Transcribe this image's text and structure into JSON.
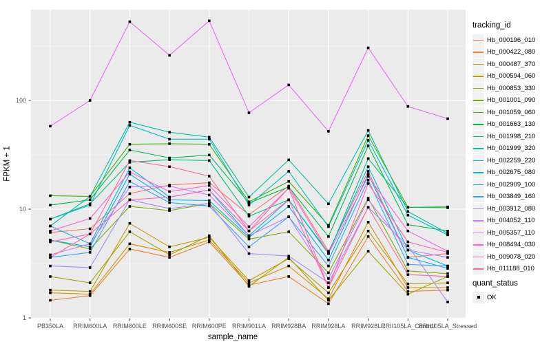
{
  "figure": {
    "kind": "ggplot-line-chart",
    "background": "#FFFFFF",
    "panel_background": "#EBEBEB",
    "grid_color": "#FFFFFF",
    "tick_text_color": "#4D4D4D",
    "legend_key_background": "#F2F2F2",
    "point_color": "#000000"
  },
  "legend": {
    "tracking_title": "tracking_id",
    "quant_title": "quant_status",
    "quant_items": [
      {
        "label": "OK",
        "marker": "black-square"
      }
    ]
  },
  "chart_data": {
    "type": "line",
    "title": "",
    "xlabel": "sample_name",
    "ylabel": "FPKM + 1",
    "y_scale": "log10",
    "y_ticks": [
      1,
      10,
      100
    ],
    "ylim": [
      1,
      600
    ],
    "grid": true,
    "legend_position": "right",
    "legend_title": "tracking_id",
    "marker": "black-square",
    "categories": [
      "PB350LA",
      "RRIM600LA",
      "RRIM600LE",
      "RRIM600SE",
      "RRIM600PE",
      "RRIM901LA",
      "RRIM928BA",
      "RRIM928LA",
      "RRIM928LE",
      "RRII105LA_Control",
      "RRII105LA_Stressed"
    ],
    "series": [
      {
        "name": "Hb_000196_010",
        "color": "#F8766D",
        "values": [
          6.1,
          6.6,
          13.9,
          16.7,
          17.5,
          8.9,
          16.3,
          4.1,
          22.3,
          3.6,
          3.9
        ]
      },
      {
        "name": "Hb_000422_080",
        "color": "#EA8331",
        "values": [
          1.45,
          1.6,
          4.3,
          3.6,
          5.0,
          2.0,
          2.4,
          1.35,
          5.6,
          1.75,
          1.8
        ]
      },
      {
        "name": "Hb_000487_370",
        "color": "#D89000",
        "values": [
          1.7,
          1.65,
          4.8,
          4.0,
          5.2,
          2.1,
          3.0,
          1.5,
          7.6,
          1.9,
          1.9
        ]
      },
      {
        "name": "Hb_000594_060",
        "color": "#C09B00",
        "values": [
          1.8,
          1.75,
          7.4,
          4.5,
          5.5,
          2.2,
          3.5,
          1.7,
          6.3,
          2.05,
          2.1
        ]
      },
      {
        "name": "Hb_000853_330",
        "color": "#A3A500",
        "values": [
          2.4,
          2.1,
          6.2,
          3.8,
          5.7,
          1.95,
          3.6,
          1.45,
          4.1,
          1.65,
          2.4
        ]
      },
      {
        "name": "Hb_001001_090",
        "color": "#7CAE00",
        "values": [
          5.2,
          4.3,
          10.6,
          9.7,
          11.3,
          5.3,
          6.2,
          2.6,
          12.6,
          2.7,
          2.55
        ]
      },
      {
        "name": "Hb_001059_060",
        "color": "#39B600",
        "values": [
          13.3,
          13.1,
          39.5,
          40.0,
          39.5,
          11.7,
          18.0,
          7.1,
          47.5,
          10.4,
          10.5
        ]
      },
      {
        "name": "Hb_001663_130",
        "color": "#00BB4E",
        "values": [
          10.9,
          12.2,
          35.0,
          29.6,
          31.5,
          11.4,
          16.0,
          5.6,
          38.3,
          7.2,
          6.3
        ]
      },
      {
        "name": "Hb_001998_210",
        "color": "#00BF7D",
        "values": [
          8.1,
          11.2,
          27.0,
          28.5,
          28.0,
          8.6,
          12.2,
          3.9,
          29.2,
          10.4,
          10.3
        ]
      },
      {
        "name": "Hb_001999_320",
        "color": "#00C1A3",
        "values": [
          7.0,
          13.1,
          63.0,
          51.0,
          46.0,
          12.9,
          28.4,
          11.2,
          53.0,
          9.5,
          6.0
        ]
      },
      {
        "name": "Hb_002259_220",
        "color": "#00BFC4",
        "values": [
          8.1,
          10.9,
          59.0,
          44.0,
          44.0,
          10.9,
          22.3,
          6.9,
          43.0,
          8.8,
          5.8
        ]
      },
      {
        "name": "Hb_002675_080",
        "color": "#00BAE0",
        "values": [
          7.0,
          4.8,
          24.0,
          12.9,
          15.0,
          5.7,
          12.2,
          4.0,
          24.6,
          4.2,
          3.0
        ]
      },
      {
        "name": "Hb_002909_100",
        "color": "#00B0F6",
        "values": [
          5.2,
          4.5,
          21.0,
          12.2,
          12.0,
          5.5,
          10.6,
          3.4,
          21.0,
          3.6,
          2.85
        ]
      },
      {
        "name": "Hb_003849_160",
        "color": "#35A2FF",
        "values": [
          3.6,
          4.0,
          18.0,
          11.5,
          10.7,
          4.5,
          8.5,
          3.0,
          18.5,
          3.1,
          3.0
        ]
      },
      {
        "name": "Hb_003912_080",
        "color": "#9590FF",
        "values": [
          3.0,
          2.9,
          12.2,
          10.1,
          11.3,
          3.9,
          3.7,
          2.1,
          10.4,
          4.6,
          1.4
        ]
      },
      {
        "name": "Hb_004052_110",
        "color": "#C77CFF",
        "values": [
          3.8,
          4.8,
          16.0,
          16.3,
          13.5,
          5.7,
          8.5,
          2.3,
          12.2,
          4.2,
          3.6
        ]
      },
      {
        "name": "Hb_005357_110",
        "color": "#E76BF3",
        "values": [
          58,
          100,
          530,
          260,
          540,
          77,
          139,
          52,
          305,
          88,
          68
        ]
      },
      {
        "name": "Hb_008494_030",
        "color": "#FA62DB",
        "values": [
          6.3,
          8.2,
          22.0,
          14.5,
          16.5,
          6.9,
          15.6,
          3.9,
          20.0,
          6.3,
          4.1
        ]
      },
      {
        "name": "Hb_009078_020",
        "color": "#FF62BC",
        "values": [
          5.0,
          5.9,
          12.2,
          12.9,
          15.0,
          6.3,
          12.2,
          1.9,
          17.2,
          5.0,
          4.0
        ]
      },
      {
        "name": "Hb_011188_010",
        "color": "#FF6A98",
        "values": [
          3.6,
          5.9,
          28.0,
          24.6,
          20.1,
          6.3,
          15.6,
          1.9,
          10.4,
          2.5,
          2.4
        ]
      }
    ],
    "quant_status": {
      "title": "quant_status",
      "items": [
        "OK"
      ]
    }
  }
}
